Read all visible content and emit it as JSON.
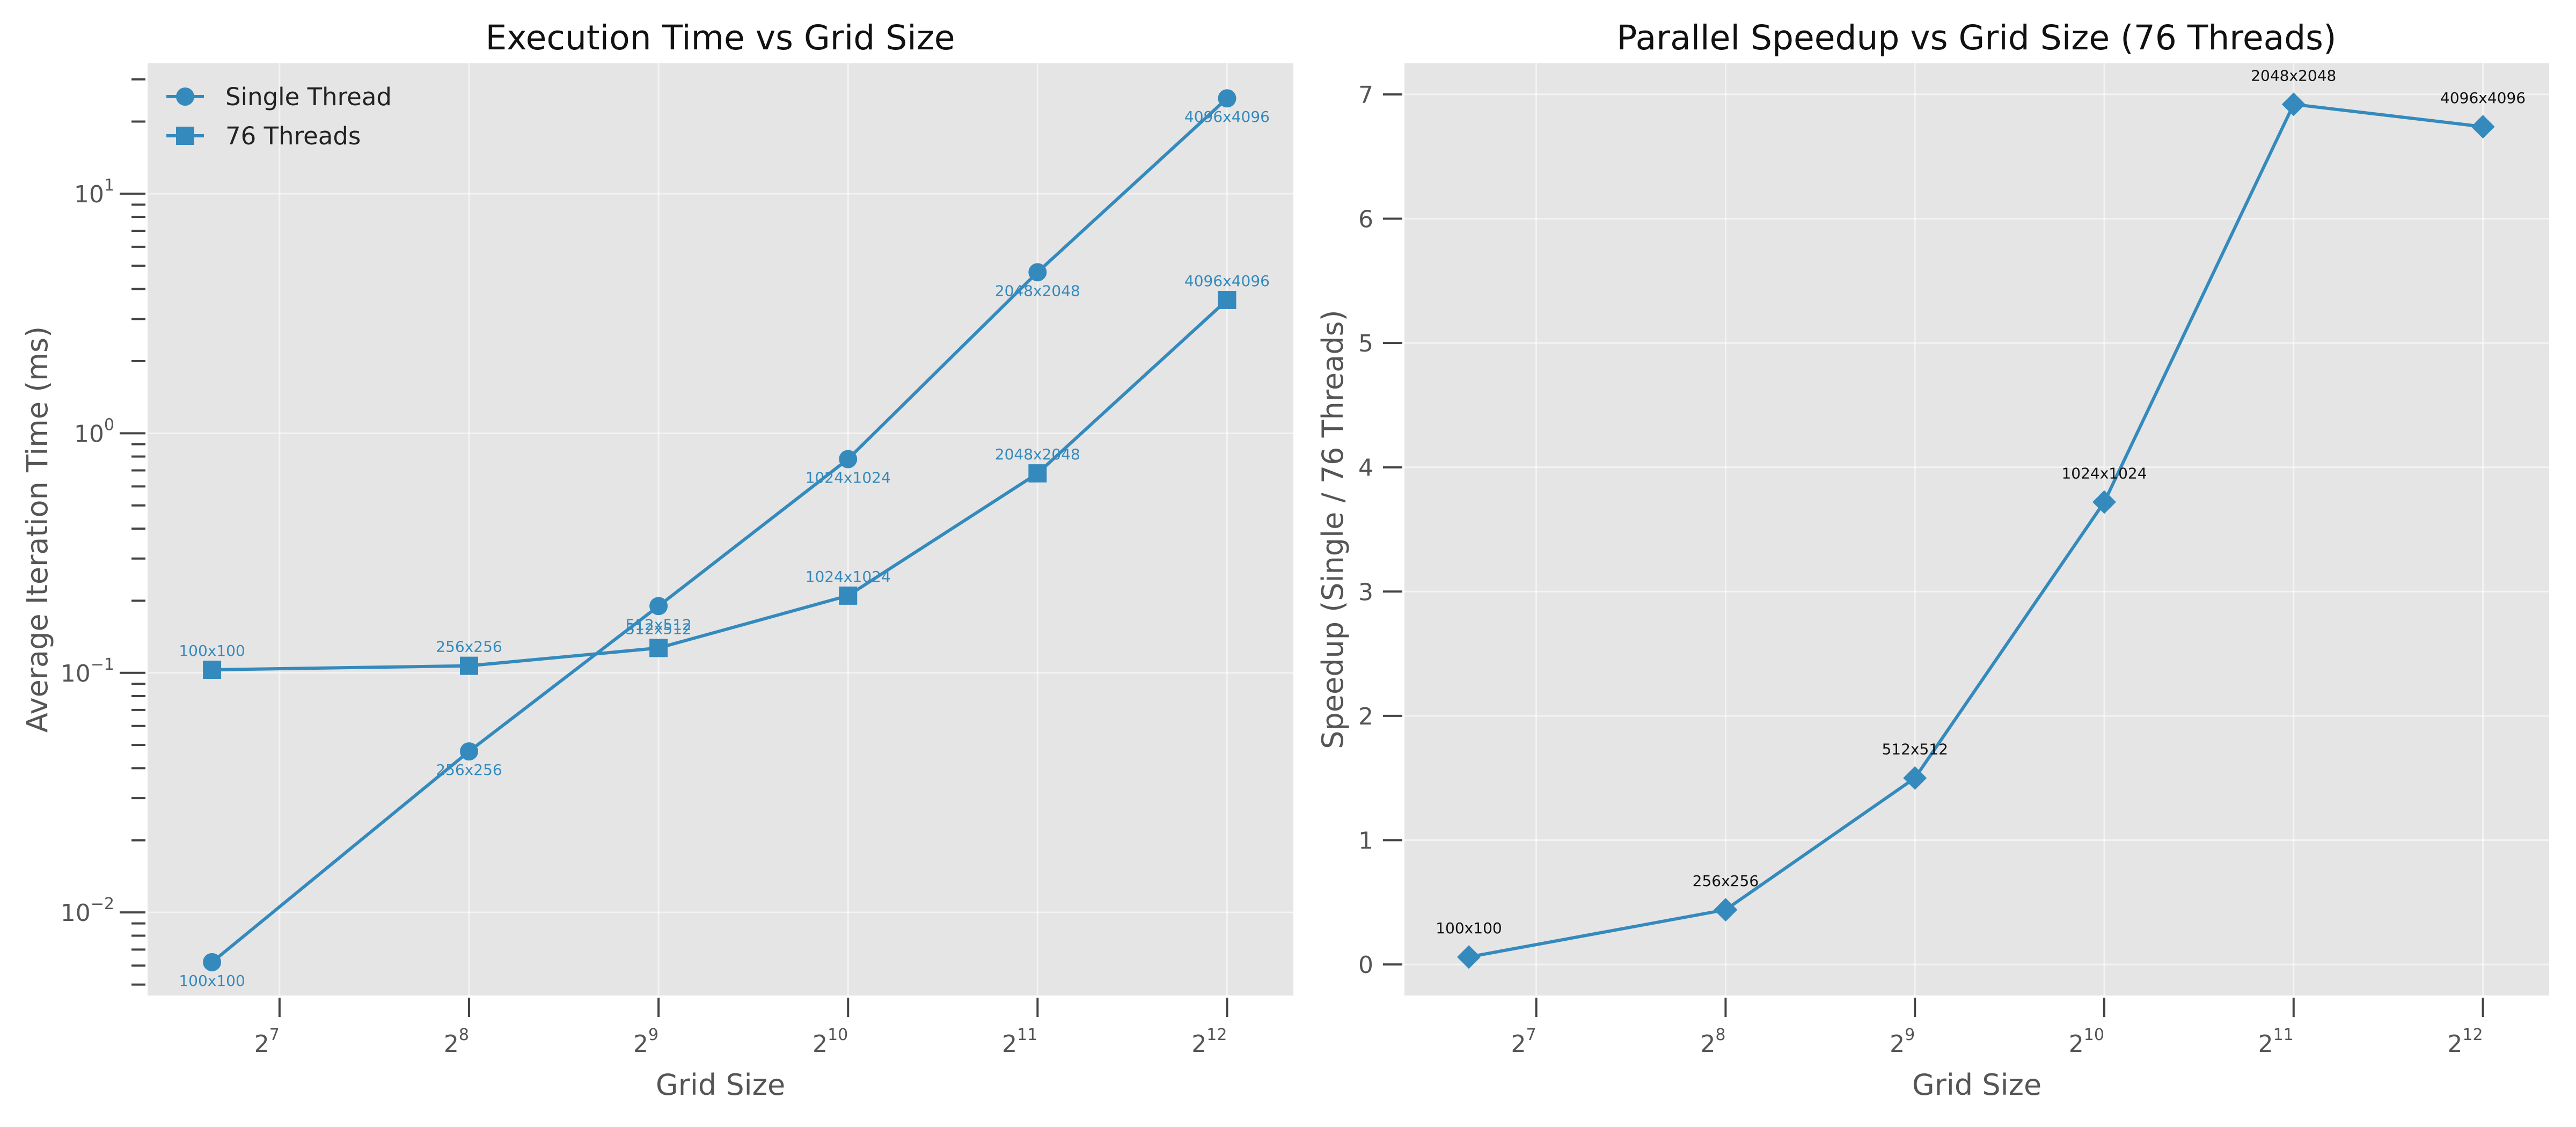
{
  "chart_data": [
    {
      "type": "line",
      "title": "Execution Time vs Grid Size",
      "xlabel": "Grid Size",
      "ylabel": "Average Iteration Time (ms)",
      "xscale": "log2",
      "yscale": "log10",
      "grid": true,
      "legend": "top-left",
      "xlim": [
        79,
        5220
      ],
      "ylim": [
        0.0045,
        35
      ],
      "x_ticks": [
        {
          "base": "2",
          "exp": "7"
        },
        {
          "base": "2",
          "exp": "8"
        },
        {
          "base": "2",
          "exp": "9"
        },
        {
          "base": "2",
          "exp": "10"
        },
        {
          "base": "2",
          "exp": "11"
        },
        {
          "base": "2",
          "exp": "12"
        }
      ],
      "y_ticks": [
        {
          "base": "10",
          "exp": "−2"
        },
        {
          "base": "10",
          "exp": "−1"
        },
        {
          "base": "10",
          "exp": "0"
        },
        {
          "base": "10",
          "exp": "1"
        }
      ],
      "x": [
        100,
        256,
        512,
        1024,
        2048,
        4096
      ],
      "series": [
        {
          "name": "Single Thread",
          "marker": "circle",
          "color": "#348abd",
          "values": [
            0.0062,
            0.047,
            0.19,
            0.78,
            4.7,
            25
          ],
          "point_labels": [
            "100x100",
            "256x256",
            "512x512",
            "1024x1024",
            "2048x2048",
            "4096x4096"
          ],
          "label_position": "below"
        },
        {
          "name": "76 Threads",
          "marker": "square",
          "color": "#348abd",
          "values": [
            0.103,
            0.107,
            0.127,
            0.21,
            0.68,
            3.6
          ],
          "point_labels": [
            "100x100",
            "256x256",
            "512x512",
            "1024x1024",
            "2048x2048",
            "4096x4096"
          ],
          "label_position": "above"
        }
      ]
    },
    {
      "type": "line",
      "title": "Parallel Speedup vs Grid Size (76 Threads)",
      "xlabel": "Grid Size",
      "ylabel": "Speedup (Single / 76 Threads)",
      "xscale": "log2",
      "yscale": "linear",
      "grid": true,
      "xlim": [
        79,
        5220
      ],
      "ylim": [
        -0.25,
        7.25
      ],
      "x_ticks": [
        {
          "base": "2",
          "exp": "7"
        },
        {
          "base": "2",
          "exp": "8"
        },
        {
          "base": "2",
          "exp": "9"
        },
        {
          "base": "2",
          "exp": "10"
        },
        {
          "base": "2",
          "exp": "11"
        },
        {
          "base": "2",
          "exp": "12"
        }
      ],
      "y_ticks": [
        "0",
        "1",
        "2",
        "3",
        "4",
        "5",
        "6",
        "7"
      ],
      "x": [
        100,
        256,
        512,
        1024,
        2048,
        4096
      ],
      "series": [
        {
          "marker": "diamond",
          "color": "#348abd",
          "values": [
            0.06,
            0.44,
            1.5,
            3.72,
            6.92,
            6.74
          ],
          "point_labels": [
            "100x100",
            "256x256",
            "512x512",
            "1024x1024",
            "2048x2048",
            "4096x4096"
          ],
          "label_position": "above",
          "label_color": "#111111"
        }
      ]
    }
  ]
}
